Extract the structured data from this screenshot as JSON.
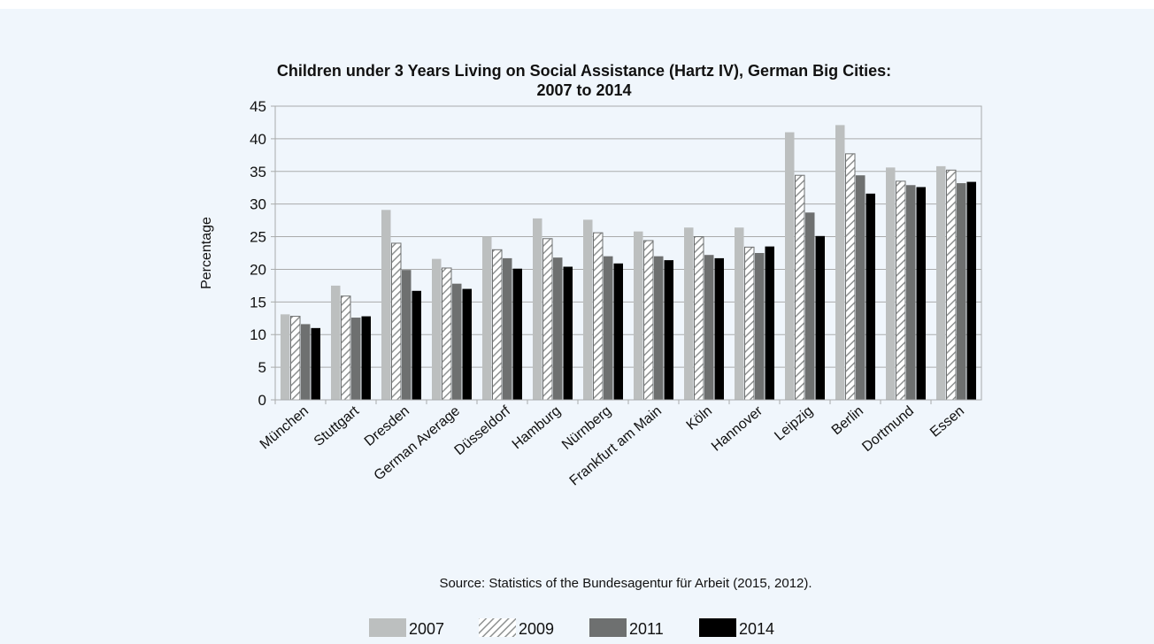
{
  "chart_data": {
    "type": "bar",
    "title": "Children under 3 Years Living on Social Assistance (Hartz IV), German Big Cities:",
    "title_line2": "2007 to 2014",
    "ylabel": "Percentage",
    "ylim": [
      0,
      45
    ],
    "yticks": [
      0,
      5,
      10,
      15,
      20,
      25,
      30,
      35,
      40,
      45
    ],
    "grid": true,
    "legend_position": "bottom",
    "source": "Source: Statistics of the Bundesagentur für Arbeit (2015, 2012).",
    "categories": [
      "München",
      "Stuttgart",
      "Dresden",
      "German Average",
      "Düsseldorf",
      "Hamburg",
      "Nürnberg",
      "Frankfurt am Main",
      "Köln",
      "Hannover",
      "Leipzig",
      "Berlin",
      "Dortmund",
      "Essen"
    ],
    "series": [
      {
        "name": "2007",
        "color": "#bcbfbf",
        "pattern": "solid",
        "values": [
          13.1,
          17.5,
          29.1,
          21.6,
          25.0,
          27.8,
          27.6,
          25.8,
          26.4,
          26.4,
          41.0,
          42.1,
          35.6,
          35.8
        ]
      },
      {
        "name": "2009",
        "color": "#bcbfbf",
        "pattern": "hatched",
        "values": [
          12.8,
          15.9,
          24.0,
          20.2,
          23.0,
          24.7,
          25.6,
          24.4,
          25.0,
          23.4,
          34.4,
          37.7,
          33.5,
          35.2
        ]
      },
      {
        "name": "2011",
        "color": "#6e7070",
        "pattern": "solid",
        "values": [
          11.6,
          12.6,
          19.9,
          17.8,
          21.7,
          21.8,
          22.0,
          22.0,
          22.2,
          22.5,
          28.7,
          34.4,
          32.9,
          33.2
        ]
      },
      {
        "name": "2014",
        "color": "#000000",
        "pattern": "solid",
        "values": [
          11.0,
          12.8,
          16.7,
          17.0,
          20.1,
          20.4,
          20.9,
          21.4,
          21.7,
          23.5,
          25.1,
          31.6,
          32.6,
          33.4
        ]
      }
    ]
  }
}
